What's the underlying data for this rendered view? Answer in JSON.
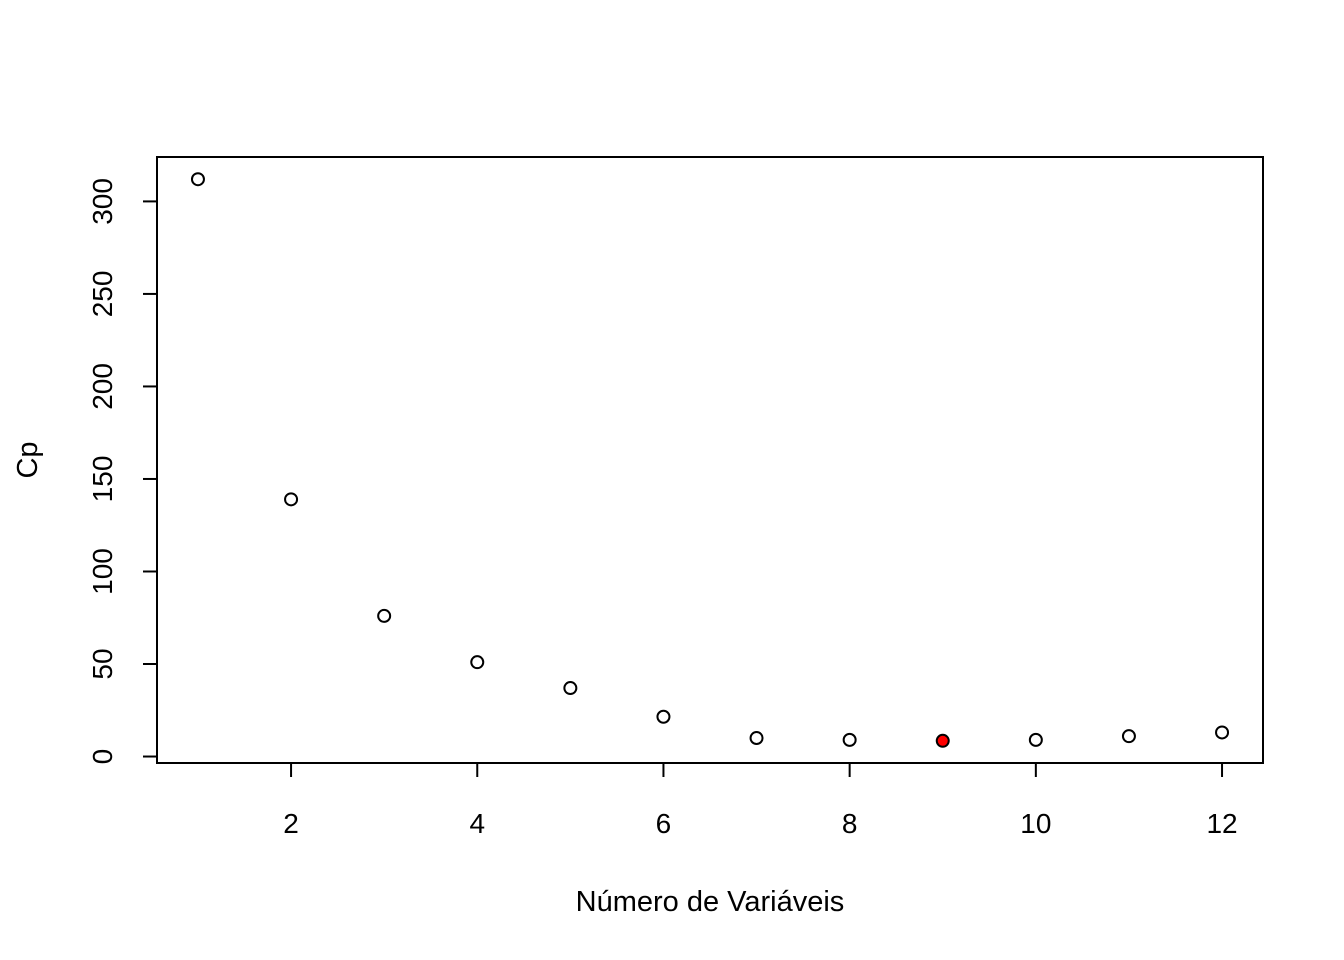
{
  "chart_data": {
    "type": "scatter",
    "title": "",
    "xlabel": "Número de Variáveis",
    "ylabel": "Cp",
    "xlim": [
      0.56,
      12.44
    ],
    "ylim": [
      -3.5,
      324
    ],
    "x_ticks": [
      2,
      4,
      6,
      8,
      10,
      12
    ],
    "y_ticks": [
      0,
      50,
      100,
      150,
      200,
      250,
      300
    ],
    "grid": false,
    "legend": "none",
    "points": [
      {
        "x": 1,
        "y": 312
      },
      {
        "x": 2,
        "y": 139
      },
      {
        "x": 3,
        "y": 76
      },
      {
        "x": 4,
        "y": 51
      },
      {
        "x": 5,
        "y": 37
      },
      {
        "x": 6,
        "y": 21.5
      },
      {
        "x": 7,
        "y": 10
      },
      {
        "x": 8,
        "y": 9
      },
      {
        "x": 9,
        "y": 8.5,
        "highlight": true
      },
      {
        "x": 10,
        "y": 9
      },
      {
        "x": 11,
        "y": 11
      },
      {
        "x": 12,
        "y": 13
      }
    ],
    "point_color": "#000000",
    "highlight_color": "#ff0000"
  }
}
